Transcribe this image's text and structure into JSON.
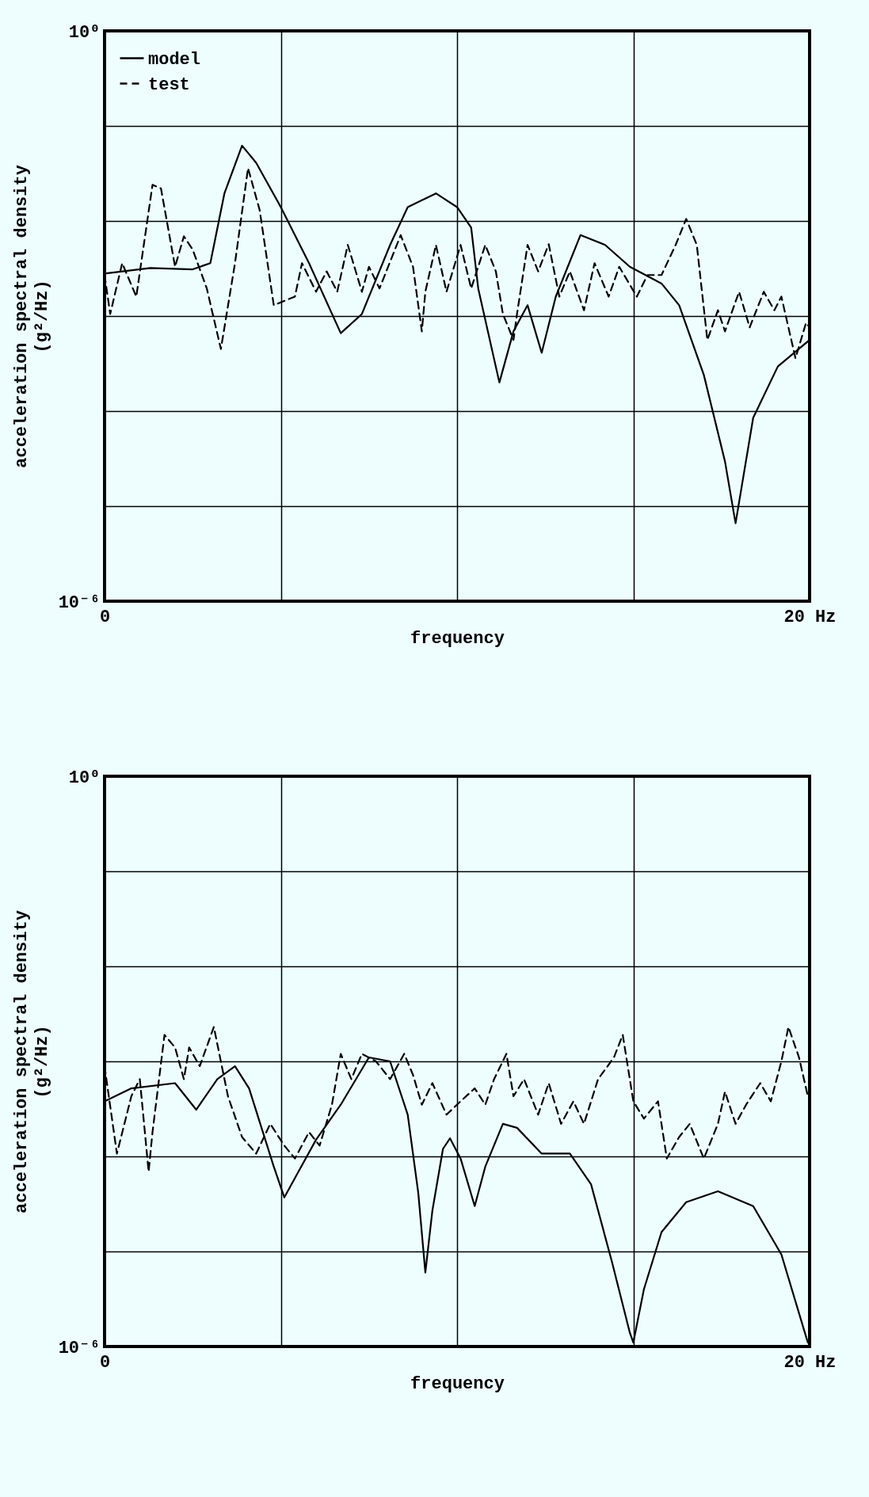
{
  "chart_data": [
    {
      "type": "line",
      "xlabel": "frequency",
      "ylabel": "acceleration spectral density\n(g²/Hz)",
      "log": "y",
      "grid": true,
      "legend": "top left",
      "xlim": [
        0,
        20
      ],
      "ylim": [
        1e-06,
        1
      ],
      "xticks": [
        {
          "value": 0,
          "label": "0"
        },
        {
          "value": 5,
          "label": null
        },
        {
          "value": 10,
          "label": null
        },
        {
          "value": 15,
          "label": null
        },
        {
          "value": 20,
          "label": "20 Hz"
        }
      ],
      "yticks": [
        {
          "value": 1e-06,
          "label": "10⁻⁶"
        },
        {
          "value": 1e-05,
          "label": null
        },
        {
          "value": 0.0001,
          "label": null
        },
        {
          "value": 0.001,
          "label": null
        },
        {
          "value": 0.01,
          "label": null
        },
        {
          "value": 0.1,
          "label": null
        },
        {
          "value": 1,
          "label": "10⁰"
        }
      ],
      "series": [
        {
          "name": "model",
          "color": "#000000",
          "line_style": "solid",
          "x": [
            0,
            1.3,
            2.5,
            3.0,
            3.4,
            3.9,
            4.3,
            5.0,
            5.8,
            6.7,
            7.3,
            8.1,
            8.6,
            9.4,
            10.0,
            10.4,
            10.6,
            11.2,
            11.6,
            12.0,
            12.4,
            12.8,
            13.5,
            14.2,
            14.9,
            15.8,
            16.3,
            17.0,
            17.6,
            17.9,
            18.4,
            19.1,
            20
          ],
          "values": [
            0.0028,
            0.0032,
            0.0031,
            0.0036,
            0.0195,
            0.062,
            0.041,
            0.014,
            0.0036,
            0.00066,
            0.00105,
            0.0056,
            0.014,
            0.0195,
            0.014,
            0.0085,
            0.00195,
            0.0002,
            0.00069,
            0.0013,
            0.00041,
            0.0016,
            0.0071,
            0.0056,
            0.0033,
            0.0022,
            0.0013,
            0.00024,
            2.95e-05,
            6.6e-06,
            8.5e-05,
            0.000295,
            0.00056
          ]
        },
        {
          "name": "test",
          "color": "#000000",
          "line_style": "dashed",
          "x": [
            0,
            0.16,
            0.5,
            0.9,
            1.36,
            1.6,
            2.0,
            2.25,
            2.5,
            2.9,
            3.3,
            3.7,
            4.07,
            4.4,
            4.8,
            5.4,
            5.6,
            6.0,
            6.3,
            6.6,
            6.9,
            7.3,
            7.5,
            7.8,
            8.4,
            8.75,
            9.0,
            9.1,
            9.4,
            9.7,
            10.1,
            10.4,
            10.8,
            11.1,
            11.3,
            11.6,
            11.7,
            12.0,
            12.3,
            12.6,
            12.9,
            13.2,
            13.6,
            13.9,
            14.3,
            14.6,
            15.1,
            15.4,
            15.8,
            16.2,
            16.5,
            16.8,
            17.1,
            17.4,
            17.6,
            18.0,
            18.3,
            18.7,
            19.0,
            19.2,
            19.6,
            19.9,
            20
          ],
          "values": [
            0.0027,
            0.00105,
            0.0036,
            0.0016,
            0.024,
            0.022,
            0.0033,
            0.0069,
            0.005,
            0.00195,
            0.00045,
            0.0036,
            0.036,
            0.013,
            0.0013,
            0.0016,
            0.0036,
            0.0018,
            0.00295,
            0.0018,
            0.0056,
            0.0018,
            0.0033,
            0.00195,
            0.0071,
            0.0033,
            0.00069,
            0.0018,
            0.0056,
            0.0018,
            0.0056,
            0.00195,
            0.0056,
            0.00295,
            0.00105,
            0.00056,
            0.00105,
            0.0056,
            0.00295,
            0.0057,
            0.0016,
            0.00295,
            0.00115,
            0.0036,
            0.0016,
            0.0033,
            0.0016,
            0.0027,
            0.0027,
            0.0056,
            0.0105,
            0.0056,
            0.00056,
            0.00115,
            0.00069,
            0.0018,
            0.00076,
            0.0018,
            0.00115,
            0.0016,
            0.00036,
            0.00085,
            0.00076
          ]
        }
      ]
    },
    {
      "type": "line",
      "xlabel": "frequency",
      "ylabel": "acceleration spectral density\n(g²/Hz)",
      "log": "y",
      "grid": true,
      "xlim": [
        0,
        20
      ],
      "ylim": [
        1e-06,
        1
      ],
      "xticks": [
        {
          "value": 0,
          "label": "0"
        },
        {
          "value": 5,
          "label": null
        },
        {
          "value": 10,
          "label": null
        },
        {
          "value": 15,
          "label": null
        },
        {
          "value": 20,
          "label": "20 Hz"
        }
      ],
      "yticks": [
        {
          "value": 1e-06,
          "label": "10⁻⁶"
        },
        {
          "value": 1e-05,
          "label": null
        },
        {
          "value": 0.0001,
          "label": null
        },
        {
          "value": 0.001,
          "label": null
        },
        {
          "value": 0.01,
          "label": null
        },
        {
          "value": 0.1,
          "label": null
        },
        {
          "value": 1,
          "label": "10⁰"
        }
      ],
      "series": [
        {
          "color": "#000000",
          "line_style": "solid",
          "x": [
            0,
            0.76,
            2.0,
            2.6,
            3.2,
            3.7,
            4.1,
            4.8,
            5.1,
            5.5,
            6.0,
            6.7,
            7.5,
            8.1,
            8.6,
            8.9,
            9.1,
            9.3,
            9.6,
            9.8,
            10.1,
            10.5,
            10.8,
            11.3,
            11.7,
            12.4,
            13.2,
            13.8,
            14.4,
            14.9,
            15.0,
            15.3,
            15.8,
            16.5,
            17.4,
            18.4,
            19.2,
            19.95
          ],
          "values": [
            0.00038,
            0.00052,
            0.00059,
            0.00031,
            0.00065,
            0.00089,
            0.00052,
            7.8e-05,
            3.7e-05,
            6.9e-05,
            0.00015,
            0.00035,
            0.0011,
            0.001,
            0.000275,
            4.1e-05,
            6e-06,
            2.7e-05,
            0.00012,
            0.000155,
            9.5e-05,
            3e-05,
            7.8e-05,
            0.00022,
            0.0002,
            0.000107,
            0.000107,
            5.1e-05,
            7.6e-06,
            1.4e-06,
            1.1e-06,
            4e-06,
            1.6e-05,
            3.3e-05,
            4.3e-05,
            3e-05,
            9.3e-06,
            1.1e-06
          ]
        },
        {
          "color": "#000000",
          "line_style": "dashed",
          "x": [
            0,
            0.35,
            0.76,
            1.0,
            1.25,
            1.36,
            1.7,
            2.0,
            2.25,
            2.4,
            2.7,
            3.1,
            3.5,
            3.9,
            4.3,
            4.7,
            5.1,
            5.4,
            5.8,
            6.1,
            6.45,
            6.7,
            7.0,
            7.3,
            7.7,
            8.1,
            8.5,
            8.75,
            9.0,
            9.3,
            9.7,
            10.1,
            10.5,
            10.8,
            11.05,
            11.4,
            11.6,
            11.9,
            12.3,
            12.6,
            12.95,
            13.3,
            13.6,
            14.0,
            14.45,
            14.7,
            15.0,
            15.3,
            15.7,
            15.95,
            16.3,
            16.6,
            17.0,
            17.4,
            17.6,
            17.9,
            18.2,
            18.6,
            18.9,
            19.2,
            19.4,
            19.7,
            19.95
          ],
          "values": [
            0.00089,
            0.000107,
            0.00043,
            0.00065,
            6.9e-05,
            0.00018,
            0.0019,
            0.0014,
            0.00065,
            0.0014,
            0.00089,
            0.0023,
            0.00043,
            0.00016,
            0.000107,
            0.00022,
            0.00013,
            9.5e-05,
            0.00018,
            0.00013,
            0.00035,
            0.0012,
            0.00065,
            0.0012,
            0.001,
            0.00065,
            0.0012,
            0.00072,
            0.00035,
            0.00059,
            0.000275,
            0.00038,
            0.00052,
            0.00035,
            0.00065,
            0.0012,
            0.00043,
            0.00065,
            0.000275,
            0.00059,
            0.00022,
            0.00038,
            0.00022,
            0.00065,
            0.0011,
            0.0019,
            0.00038,
            0.00025,
            0.00038,
            9.5e-05,
            0.00016,
            0.00022,
            9.5e-05,
            0.00022,
            0.00048,
            0.00022,
            0.00035,
            0.00059,
            0.00038,
            0.001,
            0.0023,
            0.0011,
            0.00043
          ]
        }
      ]
    }
  ]
}
